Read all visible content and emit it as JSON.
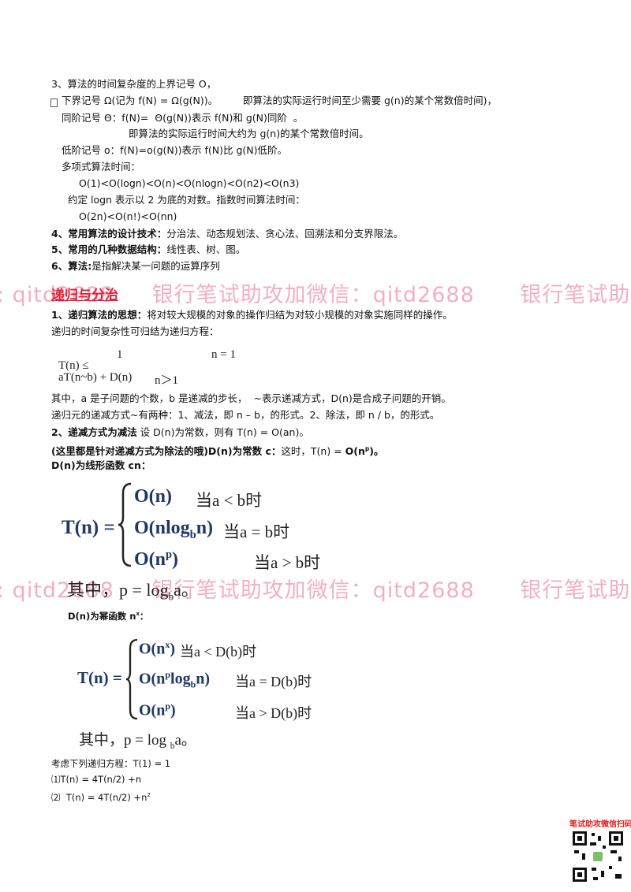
{
  "notation": [
    "3、算法的时间复杂度的上界记号 O，",
    "下界记号 Ω(记为 f(N) = Ω(g(N))。",
    "即算法的实际运行时间至少需要 g(n)的某个常数倍时间)，",
    "同阶记号 Θ：f(N)=  Θ(g(N))表示 f(N)和 g(N)同阶  。",
    "即算法的实际运行时间大约为 g(n)的某个常数倍时间。",
    "低阶记号 o：f(N)=o(g(N))表示 f(N)比 g(N)低阶。",
    "多项式算法时间：",
    "O(1)<O(logn)<O(n)<O(nlogn)<O(n2)<O(n3)",
    "约定 logn 表示以 2 为底的对数。指数时间算法时间：",
    "O(2n)<O(n!)<O(nn)"
  ],
  "items": [
    {
      "label": "4、常用算法的设计技术：",
      "text": "分治法、动态规划法、贪心法、回溯法和分支界限法。"
    },
    {
      "label": "5、常用的几种数据结构：",
      "text": "线性表、树、图。"
    },
    {
      "label": "6、算法:",
      "text": "是指解决某一问题的运算序列"
    }
  ],
  "heading": "递归与分治",
  "idea": {
    "label": "1、递归算法的思想：",
    "text": "将对较大规模的对象的操作归结为对较小规模的对象实施同样的操作。"
  },
  "intro": "递归的时间复杂性可归结为递归方程：",
  "equation": {
    "case1": "1",
    "cond1": "n = 1",
    "lhs": "T(n) ≤",
    "case2": "aT(n~b) + D(n)",
    "cond2": "n＞1"
  },
  "explain": [
    "其中，a 是子问题的个数，b 是递减的步长，  ~表示递减方式，D(n)是合成子问题的开销。",
    "递归元的递减方式~有两种：1、减法，即 n – b，的形式。2、除法，即 n / b，的形式。"
  ],
  "subtract": {
    "label": "2、递减方式为减法",
    "text": " 设 D(n)为常数，则有 T(n) = O(an)。"
  },
  "divide": {
    "label": "(这里都是针对递减方式为除法的哦)D(n)为常数 c：",
    "text": "这时，T(n) = ",
    "result": "O(n",
    "sup": "p",
    ".end": ")。"
  },
  "linear": {
    "title": "D(n)为线形函数 cn：",
    "lhs": "T(n) =",
    "r1": "O(n)",
    "c1": "当a < b时",
    "r2a": "O(nlog",
    "r2sub": "b",
    "r2b": "n)",
    "c2": "当a = b时",
    "r3a": "O(n",
    "r3sup": "p",
    "r3b": ")",
    "c3": "当a > b时",
    "note": "其中，p = log",
    "noteSub": "b",
    "noteEnd": "a。"
  },
  "power": {
    "title": "D(n)为幂函数 n",
    "titleSup": "x",
    "titleEnd": "：",
    "lhs": "T(n) =",
    "r1a": "O(n",
    "r1sup": "x",
    "r1b": ")",
    "c1": "当a < D(b)时",
    "r2a": "O(n",
    "r2sup": "p",
    "r2b": "log",
    "r2sub": "b",
    "r2c": "n)",
    "c2": "当a = D(b)时",
    "r3a": "O(n",
    "r3sup": "p",
    "r3b": ")",
    "c3": "当a > D(b)时",
    "note": "其中，p = log ",
    "noteSub": "b",
    "noteEnd": "a。"
  },
  "examples": {
    "intro": "考虑下列递归方程：T(1) = 1",
    "e1": "⑴T(n) = 4T(n/2) +n",
    "e2": "⑵  T(n) = 4T(n/2) +n",
    "e2sup": "2"
  },
  "watermark": ": qitd2688     银行笔试助攻加微信：qitd2688      银行笔试助",
  "qr": "笔试助攻微信扫码↓"
}
